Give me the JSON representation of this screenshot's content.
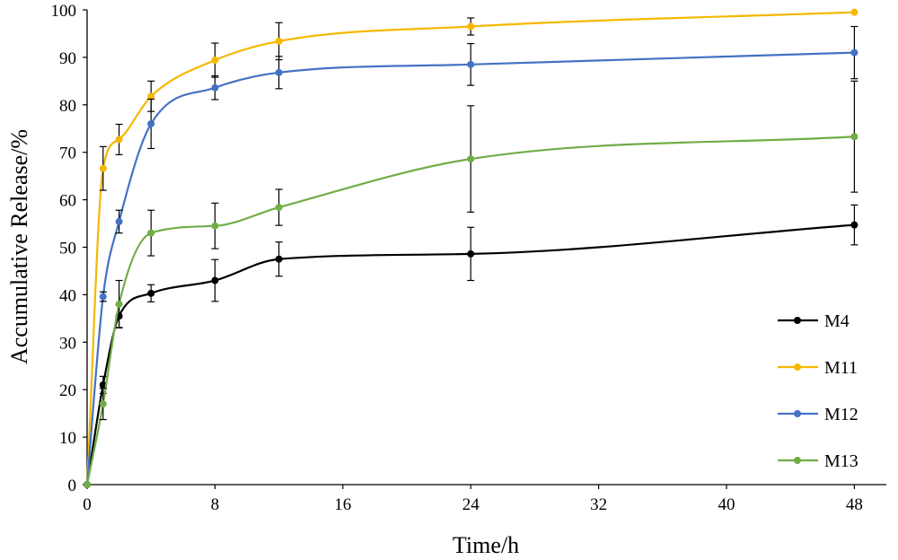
{
  "chart_data": {
    "type": "line",
    "xlabel": "Time/h",
    "ylabel": "Accumulative Release/%",
    "xlim": [
      0,
      50
    ],
    "ylim": [
      0,
      100
    ],
    "xticks": [
      0,
      8,
      16,
      24,
      32,
      40,
      48
    ],
    "yticks": [
      0,
      10,
      20,
      30,
      40,
      50,
      60,
      70,
      80,
      90,
      100
    ],
    "grid": false,
    "legend_position": "right",
    "x": [
      0,
      1,
      2,
      4,
      8,
      12,
      24,
      48
    ],
    "series": [
      {
        "name": "M4",
        "color": "#000000",
        "values": [
          0,
          21,
          35.5,
          40.3,
          43,
          47.5,
          48.6,
          54.7
        ],
        "errors": [
          0,
          1.8,
          2.4,
          1.8,
          4.4,
          3.6,
          5.6,
          4.2
        ]
      },
      {
        "name": "M11",
        "color": "#f5b800",
        "values": [
          0,
          66.6,
          72.7,
          81.8,
          89.4,
          93.4,
          96.5,
          99.5
        ],
        "errors": [
          0,
          4.6,
          3.2,
          3.2,
          3.6,
          3.9,
          1.8,
          0
        ]
      },
      {
        "name": "M12",
        "color": "#4472c4",
        "values": [
          0,
          39.6,
          55.4,
          76,
          83.6,
          86.8,
          88.5,
          91
        ],
        "errors": [
          0,
          1,
          2.4,
          5.2,
          2.5,
          3.4,
          4.4,
          5.5
        ]
      },
      {
        "name": "M13",
        "color": "#70ad47",
        "values": [
          0,
          17,
          38,
          53,
          54.5,
          58.4,
          68.6,
          73.3
        ],
        "errors": [
          0,
          3.3,
          5,
          4.8,
          4.8,
          3.8,
          11.2,
          11.7
        ]
      }
    ]
  }
}
